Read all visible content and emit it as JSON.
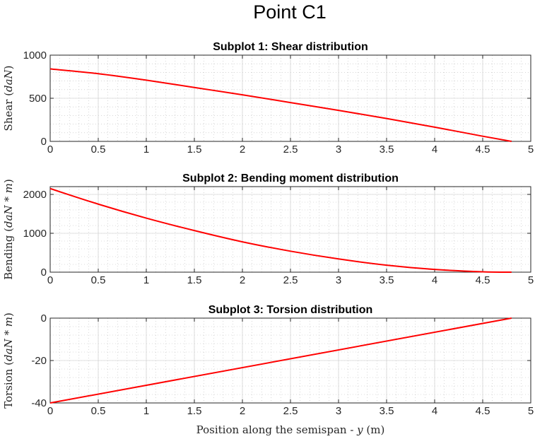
{
  "figure_title": "Point C1",
  "chart_data": [
    {
      "type": "line",
      "title": "Subplot 1: Shear distribution",
      "ylabel": {
        "prefix": "Shear (",
        "italic": "daN",
        "suffix": ")"
      },
      "xlabel": "",
      "xlim": [
        0,
        5
      ],
      "ylim": [
        0,
        1000
      ],
      "xticks": [
        0,
        0.5,
        1,
        1.5,
        2,
        2.5,
        3,
        3.5,
        4,
        4.5,
        5
      ],
      "yticks": [
        0,
        500,
        1000
      ],
      "grid": true,
      "minor_grid": true,
      "series": [
        {
          "color": "#ff0000",
          "x": [
            0,
            0.5,
            1,
            1.5,
            2,
            2.5,
            3,
            3.5,
            4,
            4.5,
            4.8
          ],
          "y": [
            840,
            785,
            710,
            625,
            540,
            450,
            360,
            265,
            165,
            60,
            0
          ]
        }
      ]
    },
    {
      "type": "line",
      "title": "Subplot 2: Bending moment distribution",
      "ylabel": {
        "prefix": "Bending (",
        "italic": "daN * m",
        "suffix": ")"
      },
      "xlabel": "",
      "xlim": [
        0,
        5
      ],
      "ylim": [
        0,
        2200
      ],
      "xticks": [
        0,
        0.5,
        1,
        1.5,
        2,
        2.5,
        3,
        3.5,
        4,
        4.5,
        5
      ],
      "yticks": [
        0,
        1000,
        2000
      ],
      "grid": true,
      "minor_grid": true,
      "series": [
        {
          "color": "#ff0000",
          "x": [
            0,
            0.5,
            1,
            1.5,
            2,
            2.5,
            3,
            3.5,
            4,
            4.5,
            4.8
          ],
          "y": [
            2150,
            1750,
            1390,
            1070,
            780,
            540,
            340,
            180,
            70,
            10,
            0
          ]
        }
      ]
    },
    {
      "type": "line",
      "title": "Subplot 3: Torsion distribution",
      "ylabel": {
        "prefix": "Torsion (",
        "italic": "daN * m",
        "suffix": ")"
      },
      "xlabel": {
        "prefix": "Position along the semispan - ",
        "italic": "y",
        "suffix": " (m)"
      },
      "xlim": [
        0,
        5
      ],
      "ylim": [
        -40,
        0
      ],
      "xticks": [
        0,
        0.5,
        1,
        1.5,
        2,
        2.5,
        3,
        3.5,
        4,
        4.5,
        5
      ],
      "yticks": [
        -40,
        -20,
        0
      ],
      "grid": true,
      "minor_grid": true,
      "series": [
        {
          "color": "#ff0000",
          "x": [
            0,
            4.8
          ],
          "y": [
            -40,
            0
          ]
        }
      ]
    }
  ]
}
